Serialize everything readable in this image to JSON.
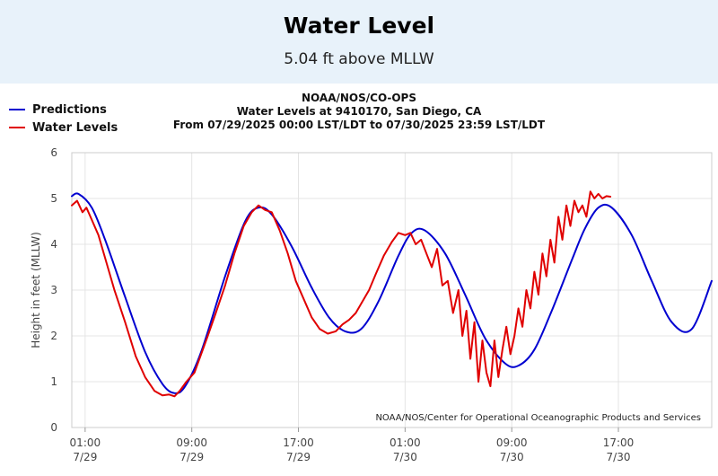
{
  "banner": {
    "title": "Water Level",
    "subtitle": "5.04 ft above MLLW"
  },
  "legend": {
    "items": [
      {
        "label": "Predictions",
        "color": "#0000d0"
      },
      {
        "label": "Water Levels",
        "color": "#e00000"
      }
    ]
  },
  "chart_header": {
    "line1": "NOAA/NOS/CO-OPS",
    "line2": "Water Levels at 9410170, San Diego, CA",
    "line3": "From 07/29/2025 00:00 LST/LDT to 07/30/2025 23:59 LST/LDT"
  },
  "chart_data": {
    "type": "line",
    "ylabel": "Height in feet (MLLW)",
    "ylim": [
      0,
      6
    ],
    "yticks": [
      "0",
      "1",
      "2",
      "3",
      "4",
      "5",
      "6"
    ],
    "xlim_hours": [
      0,
      48
    ],
    "xticks": [
      {
        "hour": 1,
        "time": "01:00",
        "date": "7/29"
      },
      {
        "hour": 9,
        "time": "09:00",
        "date": "7/29"
      },
      {
        "hour": 17,
        "time": "17:00",
        "date": "7/29"
      },
      {
        "hour": 25,
        "time": "01:00",
        "date": "7/30"
      },
      {
        "hour": 33,
        "time": "09:00",
        "date": "7/30"
      },
      {
        "hour": 41,
        "time": "17:00",
        "date": "7/30"
      }
    ],
    "grid": true,
    "credit": "NOAA/NOS/Center for Operational Oceanographic Products and Services",
    "series": [
      {
        "name": "Predictions",
        "color": "#0000d0",
        "x": [
          0,
          0.5,
          1.5,
          2.5,
          4,
          5.5,
          6.8,
          7.7,
          8.5,
          9.7,
          11.5,
          13,
          14,
          15,
          16.5,
          18,
          19.3,
          20.5,
          21.7,
          23,
          24.5,
          25.5,
          26.5,
          28,
          29.5,
          31,
          32.5,
          33.5,
          34.7,
          36,
          37.5,
          38.5,
          39.5,
          40.5,
          42,
          43.5,
          45,
          46.5,
          48
        ],
        "values": [
          5.05,
          5.1,
          4.8,
          4.1,
          2.85,
          1.65,
          0.95,
          0.75,
          0.9,
          1.65,
          3.3,
          4.5,
          4.8,
          4.65,
          3.95,
          3.05,
          2.4,
          2.1,
          2.15,
          2.75,
          3.75,
          4.25,
          4.3,
          3.8,
          2.9,
          1.95,
          1.4,
          1.35,
          1.7,
          2.55,
          3.65,
          4.35,
          4.8,
          4.8,
          4.2,
          3.2,
          2.3,
          2.15,
          3.2
        ]
      },
      {
        "name": "Water Levels",
        "color": "#e00000",
        "x": [
          0,
          0.4,
          0.8,
          1.1,
          1.4,
          2,
          2.6,
          3.2,
          4,
          4.8,
          5.5,
          6.2,
          6.8,
          7.3,
          7.7,
          8.1,
          8.6,
          9.2,
          9.7,
          10.2,
          10.8,
          11.5,
          12.2,
          12.9,
          13.5,
          14,
          14.5,
          15,
          15.6,
          16.2,
          16.8,
          17.4,
          18,
          18.6,
          19.2,
          19.8,
          20.3,
          20.8,
          21.3,
          21.8,
          22.3,
          22.8,
          23.4,
          24,
          24.5,
          25,
          25.4,
          25.8,
          26.2,
          26.6,
          27,
          27.4,
          27.8,
          28.2,
          28.6,
          29,
          29.3,
          29.6,
          29.9,
          30.2,
          30.5,
          30.8,
          31.1,
          31.4,
          31.7,
          32,
          32.3,
          32.6,
          32.9,
          33.2,
          33.5,
          33.8,
          34.1,
          34.4,
          34.7,
          35,
          35.3,
          35.6,
          35.9,
          36.2,
          36.5,
          36.8,
          37.1,
          37.4,
          37.7,
          38,
          38.3,
          38.6,
          38.9,
          39.2,
          39.5,
          39.8,
          40.1,
          40.4
        ],
        "values": [
          4.85,
          4.95,
          4.7,
          4.8,
          4.6,
          4.2,
          3.6,
          3.0,
          2.3,
          1.55,
          1.1,
          0.8,
          0.7,
          0.72,
          0.68,
          0.8,
          1.0,
          1.2,
          1.6,
          2.0,
          2.5,
          3.1,
          3.8,
          4.4,
          4.7,
          4.85,
          4.75,
          4.7,
          4.3,
          3.8,
          3.2,
          2.8,
          2.4,
          2.15,
          2.05,
          2.1,
          2.25,
          2.35,
          2.5,
          2.75,
          3.0,
          3.35,
          3.75,
          4.05,
          4.25,
          4.2,
          4.25,
          4.0,
          4.1,
          3.8,
          3.5,
          3.9,
          3.1,
          3.2,
          2.5,
          3.0,
          2.0,
          2.55,
          1.5,
          2.3,
          1.0,
          1.9,
          1.2,
          0.9,
          1.9,
          1.1,
          1.7,
          2.2,
          1.6,
          2.0,
          2.6,
          2.2,
          3.0,
          2.6,
          3.4,
          2.9,
          3.8,
          3.3,
          4.1,
          3.6,
          4.6,
          4.1,
          4.85,
          4.4,
          4.95,
          4.7,
          4.85,
          4.6,
          5.15,
          5.0,
          5.1,
          5.0,
          5.05,
          5.04
        ]
      }
    ]
  }
}
